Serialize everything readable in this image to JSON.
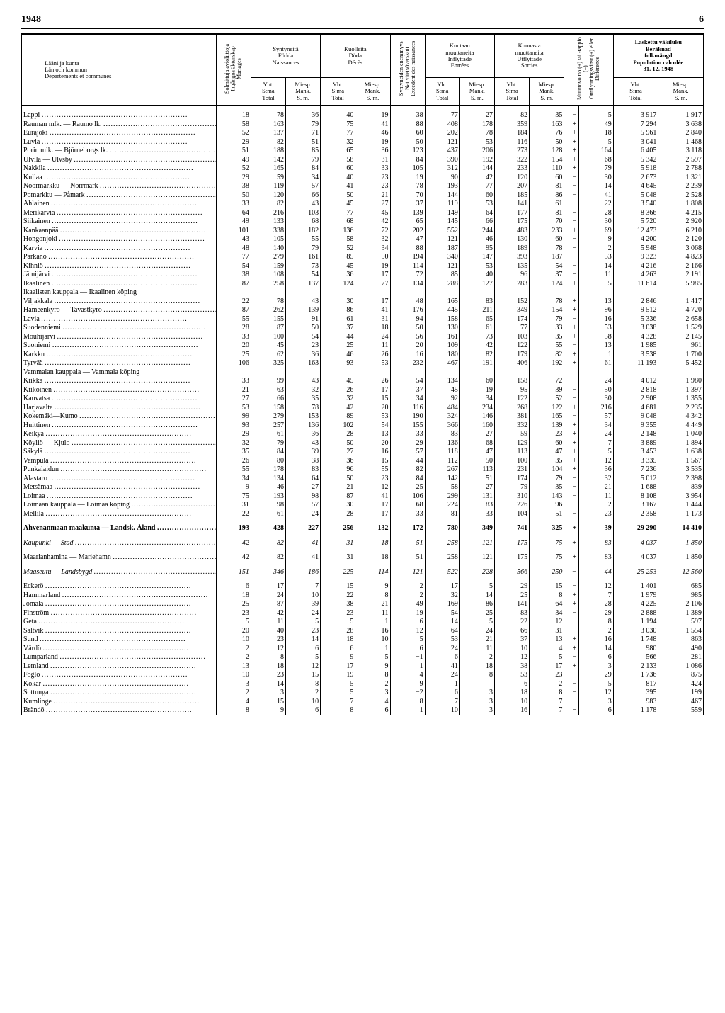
{
  "page": {
    "year": "1948",
    "number": "6"
  },
  "headers": {
    "region_label": "Lääni ja kunta\nLän och kommun\nDépartements et communes",
    "marriages": "Solmittuja avioliittoja\nIngångna äktenskap\nMariages",
    "births": "Syntyneitä\nFödda\nNaissances",
    "deaths": "Kuolleita\nDöda\nDécès",
    "excess": "Syntyneiden enemmyys\nNativitetsöverskott\nExcédent des naissances",
    "in": "Kuntaan\nmuuttaneita\nInflyttade\nEntrées",
    "out": "Kunnasta\nmuuttaneita\nUtflyttade\nSorties",
    "diff": "Muuttovoitto (+) tai -tappio (−)\nOmflyttningsvinst (+) eller\nDifférence",
    "calc": "Laskettu väkiluku\nBeräknad\nfolkmängd\nPopulation calculée\n31. 12. 1948",
    "yht": "Yht.\nS:ma\nTotal",
    "miesp": "Miesp.\nMank.\nS. m."
  },
  "rows": [
    {
      "n": "Lappi",
      "v": [
        "18",
        "78",
        "36",
        "40",
        "19",
        "38",
        "77",
        "27",
        "82",
        "35",
        "−",
        "5",
        "3 917",
        "1 917"
      ]
    },
    {
      "n": "Rauman mlk. — Raumo lk.",
      "v": [
        "58",
        "163",
        "79",
        "75",
        "41",
        "88",
        "408",
        "178",
        "359",
        "163",
        "+",
        "49",
        "7 294",
        "3 638"
      ]
    },
    {
      "n": "Eurajoki",
      "v": [
        "52",
        "137",
        "71",
        "77",
        "46",
        "60",
        "202",
        "78",
        "184",
        "76",
        "+",
        "18",
        "5 961",
        "2 840"
      ]
    },
    {
      "n": "Luvia",
      "v": [
        "29",
        "82",
        "51",
        "32",
        "19",
        "50",
        "121",
        "53",
        "116",
        "50",
        "+",
        "5",
        "3 041",
        "1 468"
      ]
    },
    {
      "n": "Porin mlk. — Björneborgs lk.",
      "v": [
        "51",
        "188",
        "85",
        "65",
        "36",
        "123",
        "437",
        "206",
        "273",
        "128",
        "+",
        "164",
        "6 405",
        "3 118"
      ]
    },
    {
      "n": "Ulvila — Ulvsby",
      "v": [
        "49",
        "142",
        "79",
        "58",
        "31",
        "84",
        "390",
        "192",
        "322",
        "154",
        "+",
        "68",
        "5 342",
        "2 597"
      ]
    },
    {
      "n": "Nakkila",
      "v": [
        "52",
        "165",
        "84",
        "60",
        "33",
        "105",
        "312",
        "144",
        "233",
        "110",
        "+",
        "79",
        "5 918",
        "2 788"
      ]
    },
    {
      "n": "Kullaa",
      "v": [
        "29",
        "59",
        "34",
        "40",
        "23",
        "19",
        "90",
        "42",
        "120",
        "60",
        "−",
        "30",
        "2 673",
        "1 321"
      ]
    },
    {
      "n": "Noormarkku — Norrmark",
      "v": [
        "38",
        "119",
        "57",
        "41",
        "23",
        "78",
        "193",
        "77",
        "207",
        "81",
        "−",
        "14",
        "4 645",
        "2 239"
      ]
    },
    {
      "n": "Pomarkku — Påmark",
      "v": [
        "50",
        "120",
        "66",
        "50",
        "21",
        "70",
        "144",
        "60",
        "185",
        "86",
        "−",
        "41",
        "5 048",
        "2 528"
      ]
    },
    {
      "n": "Ahlainen",
      "v": [
        "33",
        "82",
        "43",
        "45",
        "27",
        "37",
        "119",
        "53",
        "141",
        "61",
        "−",
        "22",
        "3 540",
        "1 808"
      ]
    },
    {
      "n": "Merikarvia",
      "v": [
        "64",
        "216",
        "103",
        "77",
        "45",
        "139",
        "149",
        "64",
        "177",
        "81",
        "−",
        "28",
        "8 366",
        "4 215"
      ]
    },
    {
      "n": "Siikainen",
      "v": [
        "49",
        "133",
        "68",
        "68",
        "42",
        "65",
        "145",
        "66",
        "175",
        "70",
        "−",
        "30",
        "5 720",
        "2 920"
      ]
    },
    {
      "n": "Kankaanpää",
      "v": [
        "101",
        "338",
        "182",
        "136",
        "72",
        "202",
        "552",
        "244",
        "483",
        "233",
        "+",
        "69",
        "12 473",
        "6 210"
      ]
    },
    {
      "n": "Hongonjoki",
      "v": [
        "43",
        "105",
        "55",
        "58",
        "32",
        "47",
        "121",
        "46",
        "130",
        "60",
        "−",
        "9",
        "4 200",
        "2 120"
      ]
    },
    {
      "n": "Karvia",
      "v": [
        "48",
        "140",
        "79",
        "52",
        "34",
        "88",
        "187",
        "95",
        "189",
        "78",
        "−",
        "2",
        "5 948",
        "3 068"
      ]
    },
    {
      "n": "Parkano",
      "v": [
        "77",
        "279",
        "161",
        "85",
        "50",
        "194",
        "340",
        "147",
        "393",
        "187",
        "−",
        "53",
        "9 323",
        "4 823"
      ]
    },
    {
      "n": "Kihniö",
      "v": [
        "54",
        "159",
        "73",
        "45",
        "19",
        "114",
        "121",
        "53",
        "135",
        "54",
        "−",
        "14",
        "4 216",
        "2 166"
      ]
    },
    {
      "n": "Jämijärvi",
      "v": [
        "38",
        "108",
        "54",
        "36",
        "17",
        "72",
        "85",
        "40",
        "96",
        "37",
        "−",
        "11",
        "4 263",
        "2 191"
      ]
    },
    {
      "n": "Ikaalinen",
      "v": [
        "87",
        "258",
        "137",
        "124",
        "77",
        "134",
        "288",
        "127",
        "283",
        "124",
        "+",
        "5",
        "11 614",
        "5 985"
      ],
      "brace": true,
      "sub": "Ikaalisten kauppala — Ikaalinen köping"
    },
    {
      "n": "Viljakkala",
      "v": [
        "22",
        "78",
        "43",
        "30",
        "17",
        "48",
        "165",
        "83",
        "152",
        "78",
        "+",
        "13",
        "2 846",
        "1 417"
      ]
    },
    {
      "n": "Hämeenkyrö — Tavastkyro",
      "v": [
        "87",
        "262",
        "139",
        "86",
        "41",
        "176",
        "445",
        "211",
        "349",
        "154",
        "+",
        "96",
        "9 512",
        "4 720"
      ]
    },
    {
      "n": "Lavia",
      "v": [
        "55",
        "155",
        "91",
        "61",
        "31",
        "94",
        "158",
        "65",
        "174",
        "79",
        "−",
        "16",
        "5 336",
        "2 658"
      ]
    },
    {
      "n": "Suodenniemi",
      "v": [
        "28",
        "87",
        "50",
        "37",
        "18",
        "50",
        "130",
        "61",
        "77",
        "33",
        "+",
        "53",
        "3 038",
        "1 529"
      ]
    },
    {
      "n": "Mouhijärvi",
      "v": [
        "33",
        "100",
        "54",
        "44",
        "24",
        "56",
        "161",
        "73",
        "103",
        "35",
        "+",
        "58",
        "4 328",
        "2 145"
      ]
    },
    {
      "n": "Suoniemi",
      "v": [
        "20",
        "45",
        "23",
        "25",
        "11",
        "20",
        "109",
        "42",
        "122",
        "55",
        "−",
        "13",
        "1 985",
        "961"
      ]
    },
    {
      "n": "Karkku",
      "v": [
        "25",
        "62",
        "36",
        "46",
        "26",
        "16",
        "180",
        "82",
        "179",
        "82",
        "+",
        "1",
        "3 538",
        "1 700"
      ]
    },
    {
      "n": "Tyrvää",
      "v": [
        "106",
        "325",
        "163",
        "93",
        "53",
        "232",
        "467",
        "191",
        "406",
        "192",
        "+",
        "61",
        "11 193",
        "5 452"
      ],
      "brace": true,
      "sub": "Vammalan kauppala — Vammala köping"
    },
    {
      "n": "Kiikka",
      "v": [
        "33",
        "99",
        "43",
        "45",
        "26",
        "54",
        "134",
        "60",
        "158",
        "72",
        "−",
        "24",
        "4 012",
        "1 980"
      ]
    },
    {
      "n": "Kiikoinen",
      "v": [
        "21",
        "63",
        "32",
        "26",
        "17",
        "37",
        "45",
        "19",
        "95",
        "39",
        "−",
        "50",
        "2 818",
        "1 397"
      ]
    },
    {
      "n": "Kauvatsa",
      "v": [
        "27",
        "66",
        "35",
        "32",
        "15",
        "34",
        "92",
        "34",
        "122",
        "52",
        "−",
        "30",
        "2 908",
        "1 355"
      ]
    },
    {
      "n": "Harjavalta",
      "v": [
        "53",
        "158",
        "78",
        "42",
        "20",
        "116",
        "484",
        "234",
        "268",
        "122",
        "+",
        "216",
        "4 681",
        "2 235"
      ]
    },
    {
      "n": "Kokemäki—Kumo",
      "v": [
        "99",
        "279",
        "153",
        "89",
        "53",
        "190",
        "324",
        "146",
        "381",
        "165",
        "−",
        "57",
        "9 048",
        "4 342"
      ]
    },
    {
      "n": "Huittinen",
      "v": [
        "93",
        "257",
        "136",
        "102",
        "54",
        "155",
        "366",
        "160",
        "332",
        "139",
        "+",
        "34",
        "9 355",
        "4 449"
      ]
    },
    {
      "n": "Keikyä",
      "v": [
        "29",
        "61",
        "36",
        "28",
        "13",
        "33",
        "83",
        "27",
        "59",
        "23",
        "+",
        "24",
        "2 148",
        "1 040"
      ]
    },
    {
      "n": "Köyliö — Kjulo",
      "v": [
        "32",
        "79",
        "43",
        "50",
        "20",
        "29",
        "136",
        "68",
        "129",
        "60",
        "+",
        "7",
        "3 889",
        "1 894"
      ]
    },
    {
      "n": "Säkylä",
      "v": [
        "35",
        "84",
        "39",
        "27",
        "16",
        "57",
        "118",
        "47",
        "113",
        "47",
        "+",
        "5",
        "3 453",
        "1 638"
      ]
    },
    {
      "n": "Vampula",
      "v": [
        "26",
        "80",
        "38",
        "36",
        "15",
        "44",
        "112",
        "50",
        "100",
        "35",
        "+",
        "12",
        "3 335",
        "1 567"
      ]
    },
    {
      "n": "Punkalaidun",
      "v": [
        "55",
        "178",
        "83",
        "96",
        "55",
        "82",
        "267",
        "113",
        "231",
        "104",
        "+",
        "36",
        "7 236",
        "3 535"
      ]
    },
    {
      "n": "Alastaro",
      "v": [
        "34",
        "134",
        "64",
        "50",
        "23",
        "84",
        "142",
        "51",
        "174",
        "79",
        "−",
        "32",
        "5 012",
        "2 398"
      ]
    },
    {
      "n": "Metsämaa",
      "v": [
        "9",
        "46",
        "27",
        "21",
        "12",
        "25",
        "58",
        "27",
        "79",
        "35",
        "−",
        "21",
        "1 688",
        "839"
      ]
    },
    {
      "n": "Loimaa",
      "v": [
        "75",
        "193",
        "98",
        "87",
        "41",
        "106",
        "299",
        "131",
        "310",
        "143",
        "−",
        "11",
        "8 108",
        "3 954"
      ]
    },
    {
      "n": "Loimaan kauppala — Loimaa köping",
      "v": [
        "31",
        "98",
        "57",
        "30",
        "17",
        "68",
        "224",
        "83",
        "226",
        "96",
        "−",
        "2",
        "3 167",
        "1 444"
      ]
    },
    {
      "n": "Mellilä",
      "v": [
        "22",
        "61",
        "24",
        "28",
        "17",
        "33",
        "81",
        "33",
        "104",
        "51",
        "−",
        "23",
        "2 358",
        "1 173"
      ]
    }
  ],
  "sections": [
    {
      "type": "spacer"
    },
    {
      "type": "section",
      "n": "Ahvenanmaan maakunta — Landsk. Åland",
      "v": [
        "193",
        "428",
        "227",
        "256",
        "132",
        "172",
        "780",
        "349",
        "741",
        "325",
        "+",
        "39",
        "29 290",
        "14 410"
      ]
    },
    {
      "type": "spacer"
    },
    {
      "type": "italic",
      "n": "Kaupunki — Stad",
      "v": [
        "42",
        "82",
        "41",
        "31",
        "18",
        "51",
        "258",
        "121",
        "175",
        "75",
        "+",
        "83",
        "4 037",
        "1 850"
      ]
    },
    {
      "type": "spacer"
    },
    {
      "type": "row",
      "n": "Maarianhamina — Mariehamn",
      "v": [
        "42",
        "82",
        "41",
        "31",
        "18",
        "51",
        "258",
        "121",
        "175",
        "75",
        "+",
        "83",
        "4 037",
        "1 850"
      ]
    },
    {
      "type": "spacer"
    },
    {
      "type": "italic",
      "n": "Maaseutu — Landsbygd",
      "v": [
        "151",
        "346",
        "186",
        "225",
        "114",
        "121",
        "522",
        "228",
        "566",
        "250",
        "−",
        "44",
        "25 253",
        "12 560"
      ]
    },
    {
      "type": "spacer"
    },
    {
      "type": "row",
      "n": "Eckerö",
      "v": [
        "6",
        "17",
        "7",
        "15",
        "9",
        "2",
        "17",
        "5",
        "29",
        "15",
        "−",
        "12",
        "1 401",
        "685"
      ]
    },
    {
      "type": "row",
      "n": "Hammarland",
      "v": [
        "18",
        "24",
        "10",
        "22",
        "8",
        "2",
        "32",
        "14",
        "25",
        "8",
        "+",
        "7",
        "1 979",
        "985"
      ]
    },
    {
      "type": "row",
      "n": "Jomala",
      "v": [
        "25",
        "87",
        "39",
        "38",
        "21",
        "49",
        "169",
        "86",
        "141",
        "64",
        "+",
        "28",
        "4 225",
        "2 106"
      ]
    },
    {
      "type": "row",
      "n": "Finström",
      "v": [
        "23",
        "42",
        "24",
        "23",
        "11",
        "19",
        "54",
        "25",
        "83",
        "34",
        "−",
        "29",
        "2 888",
        "1 389"
      ]
    },
    {
      "type": "row",
      "n": "Geta",
      "v": [
        "5",
        "11",
        "5",
        "5",
        "1",
        "6",
        "14",
        "5",
        "22",
        "12",
        "−",
        "8",
        "1 194",
        "597"
      ]
    },
    {
      "type": "row",
      "n": "Saltvik",
      "v": [
        "20",
        "40",
        "23",
        "28",
        "16",
        "12",
        "64",
        "24",
        "66",
        "31",
        "−",
        "2",
        "3 030",
        "1 554"
      ]
    },
    {
      "type": "row",
      "n": "Sund",
      "v": [
        "10",
        "23",
        "14",
        "18",
        "10",
        "5",
        "53",
        "21",
        "37",
        "13",
        "+",
        "16",
        "1 748",
        "863"
      ]
    },
    {
      "type": "row",
      "n": "Vårdö",
      "v": [
        "2",
        "12",
        "6",
        "6",
        "1",
        "6",
        "24",
        "11",
        "10",
        "4",
        "+",
        "14",
        "980",
        "490"
      ]
    },
    {
      "type": "row",
      "n": "Lumparland",
      "v": [
        "2",
        "8",
        "5",
        "9",
        "5",
        "−1",
        "6",
        "2",
        "12",
        "5",
        "−",
        "6",
        "566",
        "281"
      ]
    },
    {
      "type": "row",
      "n": "Lemland",
      "v": [
        "13",
        "18",
        "12",
        "17",
        "9",
        "1",
        "41",
        "18",
        "38",
        "17",
        "+",
        "3",
        "2 133",
        "1 086"
      ]
    },
    {
      "type": "row",
      "n": "Föglö",
      "v": [
        "10",
        "23",
        "15",
        "19",
        "8",
        "4",
        "24",
        "8",
        "53",
        "23",
        "−",
        "29",
        "1 736",
        "875"
      ]
    },
    {
      "type": "row",
      "n": "Kökar",
      "v": [
        "3",
        "14",
        "8",
        "5",
        "2",
        "9",
        "1",
        "",
        "6",
        "2",
        "−",
        "5",
        "817",
        "424"
      ]
    },
    {
      "type": "row",
      "n": "Sottunga",
      "v": [
        "2",
        "3",
        "2",
        "5",
        "3",
        "−2",
        "6",
        "3",
        "18",
        "8",
        "−",
        "12",
        "395",
        "199"
      ]
    },
    {
      "type": "row",
      "n": "Kumlinge",
      "v": [
        "4",
        "15",
        "10",
        "7",
        "4",
        "8",
        "7",
        "3",
        "10",
        "7",
        "−",
        "3",
        "983",
        "467"
      ]
    },
    {
      "type": "row",
      "n": "Brändö",
      "v": [
        "8",
        "9",
        "6",
        "8",
        "6",
        "1",
        "10",
        "3",
        "16",
        "7",
        "−",
        "6",
        "1 178",
        "559"
      ]
    }
  ]
}
